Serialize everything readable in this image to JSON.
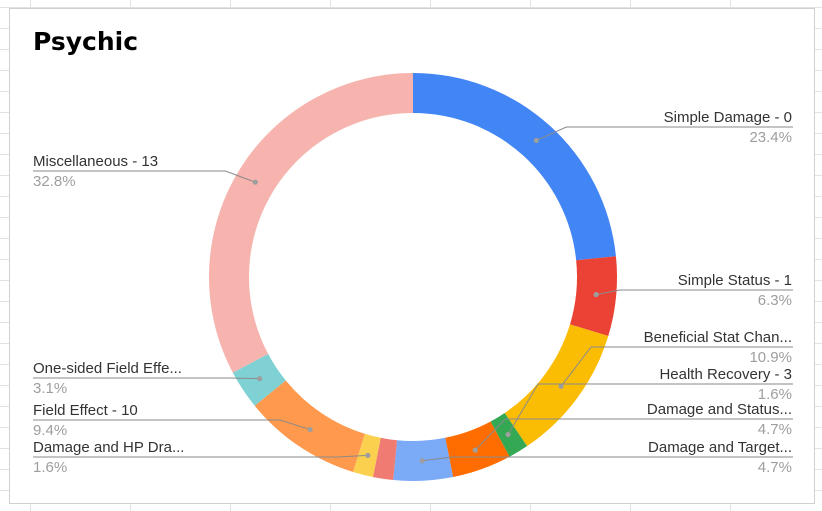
{
  "chart_data": {
    "type": "pie",
    "donut": true,
    "title": "Psychic",
    "legend": "labeled",
    "slices": [
      {
        "label": "Simple Damage - 0",
        "percent": "23.4%",
        "value": 23.4,
        "color": "#4285f4",
        "side": "right"
      },
      {
        "label": "Simple Status - 1",
        "percent": "6.3%",
        "value": 6.3,
        "color": "#ea4335",
        "side": "right"
      },
      {
        "label": "Beneficial Stat Chan...",
        "percent": "10.9%",
        "value": 10.9,
        "color": "#fbbc04",
        "side": "right"
      },
      {
        "label": "Health Recovery - 3",
        "percent": "1.6%",
        "value": 1.6,
        "color": "#34a853",
        "side": "right"
      },
      {
        "label": "Damage and Status...",
        "percent": "4.7%",
        "value": 4.7,
        "color": "#ff6d01",
        "side": "right"
      },
      {
        "label": "Damage and Target...",
        "percent": "4.7%",
        "value": 4.7,
        "color": "#7baaf7",
        "side": "right"
      },
      {
        "label": "",
        "percent": "",
        "value": 1.6,
        "color": "#f07b72",
        "side": "none"
      },
      {
        "label": "Damage and HP Dra...",
        "percent": "1.6%",
        "value": 1.6,
        "color": "#fcd04f",
        "side": "left"
      },
      {
        "label": "Field Effect - 10",
        "percent": "9.4%",
        "value": 9.4,
        "color": "#ff994d",
        "side": "left"
      },
      {
        "label": "One-sided Field Effe...",
        "percent": "3.1%",
        "value": 3.1,
        "color": "#7fd1d4",
        "side": "left"
      },
      {
        "label": "Miscellaneous - 13",
        "percent": "32.8%",
        "value": 32.8,
        "color": "#f7b4ae",
        "side": "left"
      }
    ]
  }
}
